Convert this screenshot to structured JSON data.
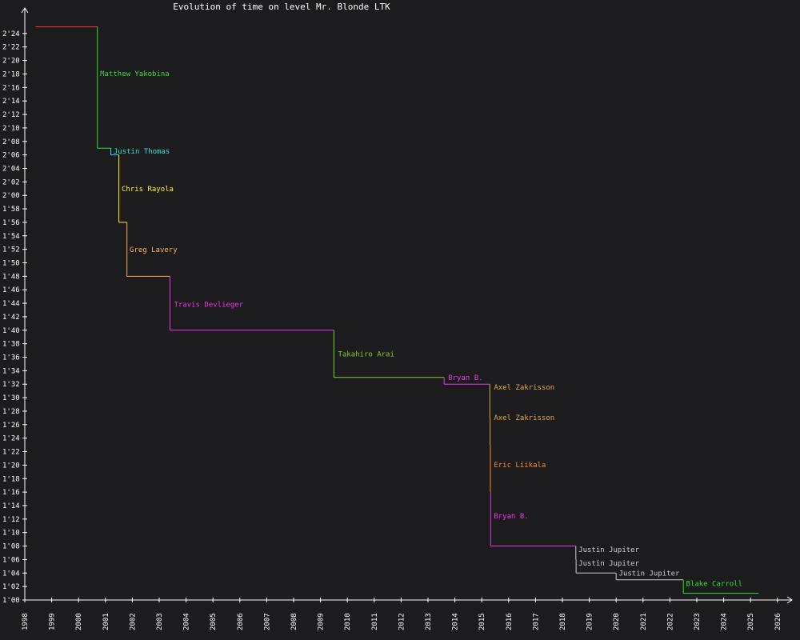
{
  "chart_data": {
    "type": "line",
    "title": "Evolution of time on level Mr. Blonde LTK",
    "xlabel": "",
    "ylabel": "",
    "xlim": [
      1998,
      2026.5
    ],
    "ylim": [
      60,
      146
    ],
    "x_ticks": [
      "1998",
      "1999",
      "2000",
      "2001",
      "2002",
      "2003",
      "2004",
      "2005",
      "2006",
      "2007",
      "2008",
      "2009",
      "2010",
      "2011",
      "2012",
      "2013",
      "2014",
      "2015",
      "2016",
      "2017",
      "2018",
      "2019",
      "2020",
      "2021",
      "2022",
      "2023",
      "2024",
      "2025",
      "2026"
    ],
    "y_ticks": [
      "1'00",
      "1'02",
      "1'04",
      "1'06",
      "1'08",
      "1'10",
      "1'12",
      "1'14",
      "1'16",
      "1'18",
      "1'20",
      "1'22",
      "1'24",
      "1'26",
      "1'28",
      "1'30",
      "1'32",
      "1'34",
      "1'36",
      "1'38",
      "1'40",
      "1'42",
      "1'44",
      "1'46",
      "1'48",
      "1'50",
      "1'52",
      "1'54",
      "1'56",
      "1'58",
      "2'00",
      "2'02",
      "2'04",
      "2'06",
      "2'08",
      "2'10",
      "2'12",
      "2'14",
      "2'16",
      "2'18",
      "2'20",
      "2'22",
      "2'24"
    ],
    "series": [
      {
        "start": 1998.4,
        "end": 2000.7,
        "value": 145,
        "color": "#ff3030"
      },
      {
        "start": 2000.7,
        "end": 2001.2,
        "value": 127,
        "color": "#33dd33"
      },
      {
        "start": 2001.2,
        "end": 2001.5,
        "value": 126,
        "color": "#33dddd"
      },
      {
        "start": 2001.5,
        "end": 2001.8,
        "value": 116,
        "color": "#ffee33"
      },
      {
        "start": 2001.8,
        "end": 2003.4,
        "value": 108,
        "color": "#ffaa55"
      },
      {
        "start": 2003.4,
        "end": 2009.5,
        "value": 100,
        "color": "#ee33ee"
      },
      {
        "start": 2009.5,
        "end": 2013.6,
        "value": 93,
        "color": "#88cc22"
      },
      {
        "start": 2013.6,
        "end": 2015.3,
        "value": 92,
        "color": "#ee33ee"
      },
      {
        "start": 2015.3,
        "end": 2015.31,
        "value": 87,
        "color": "#ddaa44"
      },
      {
        "start": 2015.31,
        "end": 2015.32,
        "value": 83,
        "color": "#ddaa44"
      },
      {
        "start": 2015.32,
        "end": 2015.33,
        "value": 76,
        "color": "#ff8833"
      },
      {
        "start": 2015.33,
        "end": 2018.5,
        "value": 68,
        "color": "#ee33ee"
      },
      {
        "start": 2018.5,
        "end": 2018.51,
        "value": 66,
        "color": "#cccccc"
      },
      {
        "start": 2018.51,
        "end": 2020.0,
        "value": 64,
        "color": "#cccccc"
      },
      {
        "start": 2020.0,
        "end": 2022.5,
        "value": 63,
        "color": "#cccccc"
      },
      {
        "start": 2022.5,
        "end": 2025.3,
        "value": 61,
        "color": "#33dd33"
      }
    ],
    "annotations": [
      {
        "text": "Matthew Yakobina",
        "x": 2000.8,
        "y": 137.7,
        "color": "#33dd33"
      },
      {
        "text": "Justin Thomas",
        "x": 2001.3,
        "y": 126.2,
        "color": "#33dddd"
      },
      {
        "text": "Chris Rayola",
        "x": 2001.6,
        "y": 120.6,
        "color": "#ffee33"
      },
      {
        "text": "Greg Lavery",
        "x": 2001.9,
        "y": 111.6,
        "color": "#ffaa55"
      },
      {
        "text": "Travis Devlieger",
        "x": 2003.55,
        "y": 103.5,
        "color": "#ee33ee"
      },
      {
        "text": "Takahiro Arai",
        "x": 2009.65,
        "y": 96.1,
        "color": "#88cc22"
      },
      {
        "text": "Bryan B.",
        "x": 2013.75,
        "y": 92.6,
        "color": "#ee33ee"
      },
      {
        "text": "Axel Zakrisson",
        "x": 2015.45,
        "y": 91.2,
        "color": "#ddaa44"
      },
      {
        "text": "Axel Zakrisson",
        "x": 2015.45,
        "y": 86.7,
        "color": "#ddaa44"
      },
      {
        "text": "Eric Liikala",
        "x": 2015.45,
        "y": 79.7,
        "color": "#ff8833"
      },
      {
        "text": "Bryan B.",
        "x": 2015.45,
        "y": 72.1,
        "color": "#ee33ee"
      },
      {
        "text": "Justin Jupiter",
        "x": 2018.6,
        "y": 67.1,
        "color": "#cccccc"
      },
      {
        "text": "Justin Jupiter",
        "x": 2018.6,
        "y": 65.1,
        "color": "#cccccc"
      },
      {
        "text": "Justin Jupiter",
        "x": 2020.1,
        "y": 63.6,
        "color": "#cccccc"
      },
      {
        "text": "Blake Carroll",
        "x": 2022.6,
        "y": 62.1,
        "color": "#33dd33"
      }
    ],
    "colors": {
      "background": "#1c1c1e",
      "axis": "#ffffff",
      "text": "#ffffff"
    }
  }
}
